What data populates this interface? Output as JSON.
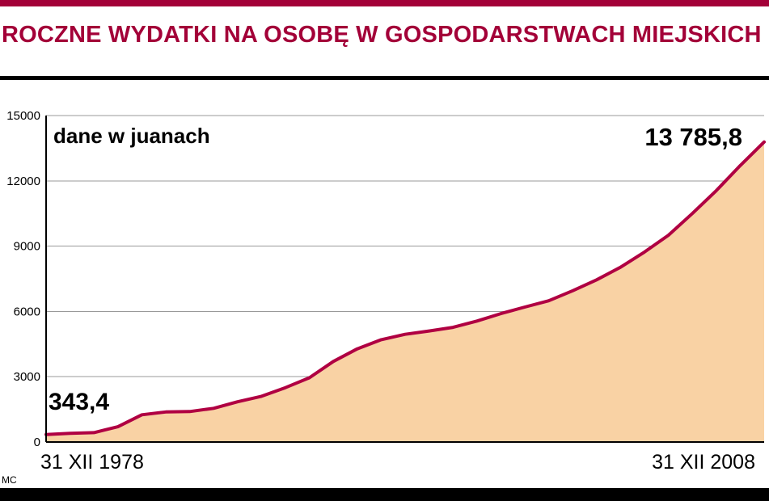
{
  "page": {
    "title": "ROCZNE WYDATKI NA OSOBĘ W GOSPODARSTWACH MIEJSKICH",
    "credit": "MC",
    "colors": {
      "title": "#a30038",
      "line": "#b00042",
      "area_fill": "#f9d2a4",
      "grid": "#999999",
      "axis": "#000000"
    }
  },
  "chart_data": {
    "type": "area",
    "title": "ROCZNE WYDATKI NA OSOBĘ W GOSPODARSTWACH MIEJSKICH",
    "unit_note": "dane w juanach",
    "start_label": "343,4",
    "end_label": "13 785,8",
    "x_axis": {
      "left_label": "31 XII 1978",
      "right_label": "31 XII 2008"
    },
    "ylim": [
      0,
      15000
    ],
    "yticks": [
      0,
      3000,
      6000,
      9000,
      12000,
      15000
    ],
    "ytick_labels": [
      "0",
      "3000",
      "6000",
      "9000",
      "12000",
      "15000"
    ],
    "x": [
      1978,
      1979,
      1980,
      1981,
      1982,
      1983,
      1984,
      1985,
      1986,
      1987,
      1988,
      1989,
      1990,
      1991,
      1992,
      1993,
      1994,
      1995,
      1996,
      1997,
      1998,
      1999,
      2000,
      2001,
      2002,
      2003,
      2004,
      2005,
      2006,
      2007,
      2008
    ],
    "values": [
      343.4,
      400,
      430,
      700,
      1250,
      1380,
      1400,
      1550,
      1850,
      2100,
      2500,
      2950,
      3700,
      4280,
      4700,
      4950,
      5100,
      5270,
      5560,
      5900,
      6200,
      6490,
      6950,
      7450,
      8030,
      8730,
      9500,
      10500,
      11550,
      12700,
      13785.8
    ],
    "grid": true,
    "legend": "none"
  }
}
